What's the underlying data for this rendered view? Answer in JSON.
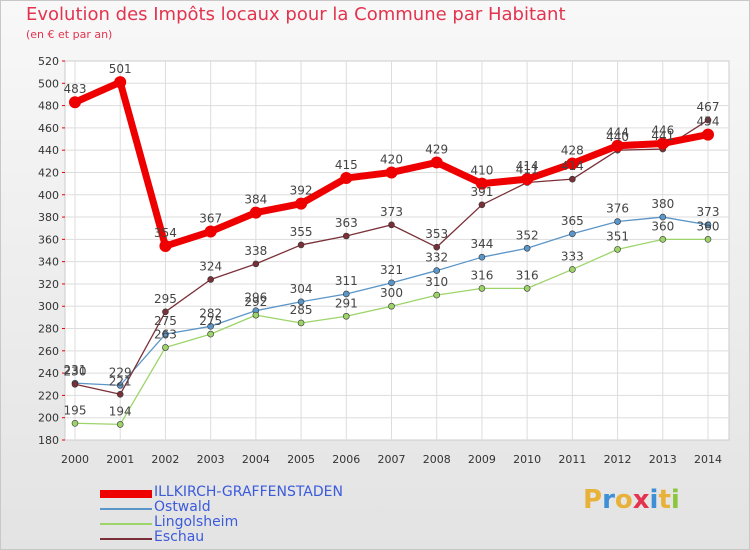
{
  "header": {
    "title": "Evolution des Impôts locaux pour la Commune par Habitant",
    "subtitle": "(en € et par an)"
  },
  "logo": {
    "text": "Proxiti",
    "letters": [
      {
        "ch": "P",
        "color": "#e8b23a"
      },
      {
        "ch": "r",
        "color": "#3f8fd6"
      },
      {
        "ch": "o",
        "color": "#e8b23a"
      },
      {
        "ch": "x",
        "color": "#e3344f"
      },
      {
        "ch": "i",
        "color": "#3f8fd6"
      },
      {
        "ch": "t",
        "color": "#e8b23a"
      },
      {
        "ch": "i",
        "color": "#8cc63f"
      }
    ]
  },
  "chart_data": {
    "type": "line",
    "title": "Evolution des Impôts locaux pour la Commune par Habitant",
    "subtitle": "(en € et par an)",
    "xlabel": "",
    "ylabel": "",
    "categories": [
      "2000",
      "2001",
      "2002",
      "2003",
      "2004",
      "2005",
      "2006",
      "2007",
      "2008",
      "2009",
      "2010",
      "2011",
      "2012",
      "2013",
      "2014"
    ],
    "ylim": [
      180,
      520
    ],
    "yticks": [
      180,
      200,
      220,
      240,
      260,
      280,
      300,
      320,
      340,
      360,
      380,
      400,
      420,
      440,
      460,
      480,
      500,
      520
    ],
    "grid": true,
    "legend_position": "bottom-left",
    "series": [
      {
        "name": "ILLKIRCH-GRAFFENSTADEN",
        "color": "#ee0000",
        "width": 7,
        "marker": 6,
        "values": [
          483,
          501,
          354,
          367,
          384,
          392,
          415,
          420,
          429,
          410,
          414,
          428,
          444,
          446,
          454
        ],
        "labels": [
          "483",
          "501",
          "354",
          "367",
          "384",
          "392",
          "415",
          "420",
          "429",
          "410",
          "414",
          "428",
          "444",
          "446",
          "454"
        ]
      },
      {
        "name": "Ostwald",
        "color": "#5b96c8",
        "width": 1.3,
        "marker": 3,
        "values": [
          231,
          229,
          275,
          282,
          296,
          304,
          311,
          321,
          332,
          344,
          352,
          365,
          376,
          380,
          373
        ],
        "labels": [
          "231",
          "229",
          "275",
          "282",
          "296",
          "304",
          "311",
          "321",
          "332",
          "344",
          "352",
          "365",
          "376",
          "380",
          "373"
        ]
      },
      {
        "name": "Lingolsheim",
        "color": "#9dd46a",
        "width": 1.3,
        "marker": 3,
        "values": [
          195,
          194,
          263,
          275,
          292,
          285,
          291,
          300,
          310,
          316,
          316,
          333,
          351,
          360,
          360
        ],
        "labels": [
          "195",
          "194",
          "263",
          "275",
          "292",
          "285",
          "291",
          "300",
          "310",
          "316",
          "316",
          "333",
          "351",
          "360",
          "360"
        ]
      },
      {
        "name": "Eschau",
        "color": "#7a3038",
        "width": 1.3,
        "marker": 3,
        "values": [
          230,
          221,
          295,
          324,
          338,
          355,
          363,
          373,
          353,
          391,
          411,
          414,
          440,
          441,
          467
        ],
        "labels": [
          "230",
          "221",
          "295",
          "324",
          "338",
          "355",
          "363",
          "373",
          "353",
          "391",
          "411",
          "414",
          "440",
          "441",
          "467"
        ]
      }
    ]
  }
}
